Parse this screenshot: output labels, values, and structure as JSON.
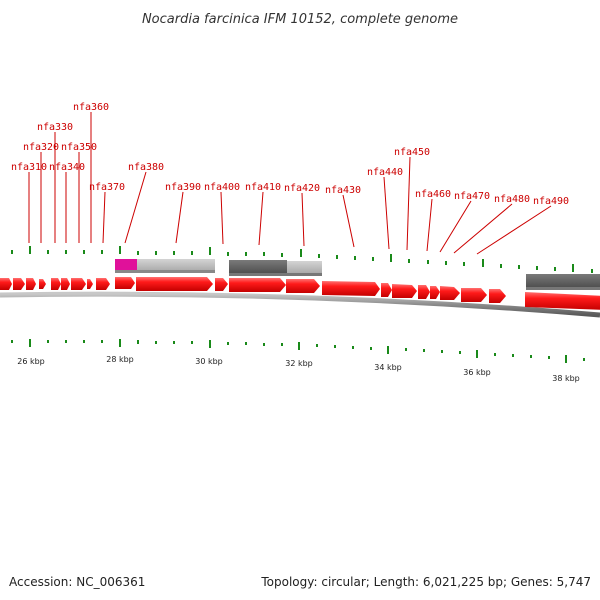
{
  "title": "Nocardia farcinica IFM 10152, complete genome",
  "genes": [
    {
      "label": "nfa310"
    },
    {
      "label": "nfa320"
    },
    {
      "label": "nfa330"
    },
    {
      "label": "nfa340"
    },
    {
      "label": "nfa350"
    },
    {
      "label": "nfa360"
    },
    {
      "label": "nfa370"
    },
    {
      "label": "nfa380"
    },
    {
      "label": "nfa390"
    },
    {
      "label": "nfa400"
    },
    {
      "label": "nfa410"
    },
    {
      "label": "nfa420"
    },
    {
      "label": "nfa430"
    },
    {
      "label": "nfa440"
    },
    {
      "label": "nfa450"
    },
    {
      "label": "nfa460"
    },
    {
      "label": "nfa470"
    },
    {
      "label": "nfa480"
    },
    {
      "label": "nfa490"
    }
  ],
  "scale": [
    "26 kbp",
    "28 kbp",
    "30 kbp",
    "32 kbp",
    "34 kbp",
    "36 kbp",
    "38 kbp"
  ],
  "footer": {
    "accession": "Accession: NC_006361",
    "summary": "Topology: circular; Length: 6,021,225 bp; Genes: 5,747"
  },
  "colors": {
    "gene": "#ff0000",
    "label": "#cc0000",
    "tick": "#1a8a1a",
    "rna_magenta": "#e0119a",
    "feature_light": "#c0c0c0",
    "feature_dark": "#6a6a6a",
    "backbone": "#8c8c8c"
  }
}
